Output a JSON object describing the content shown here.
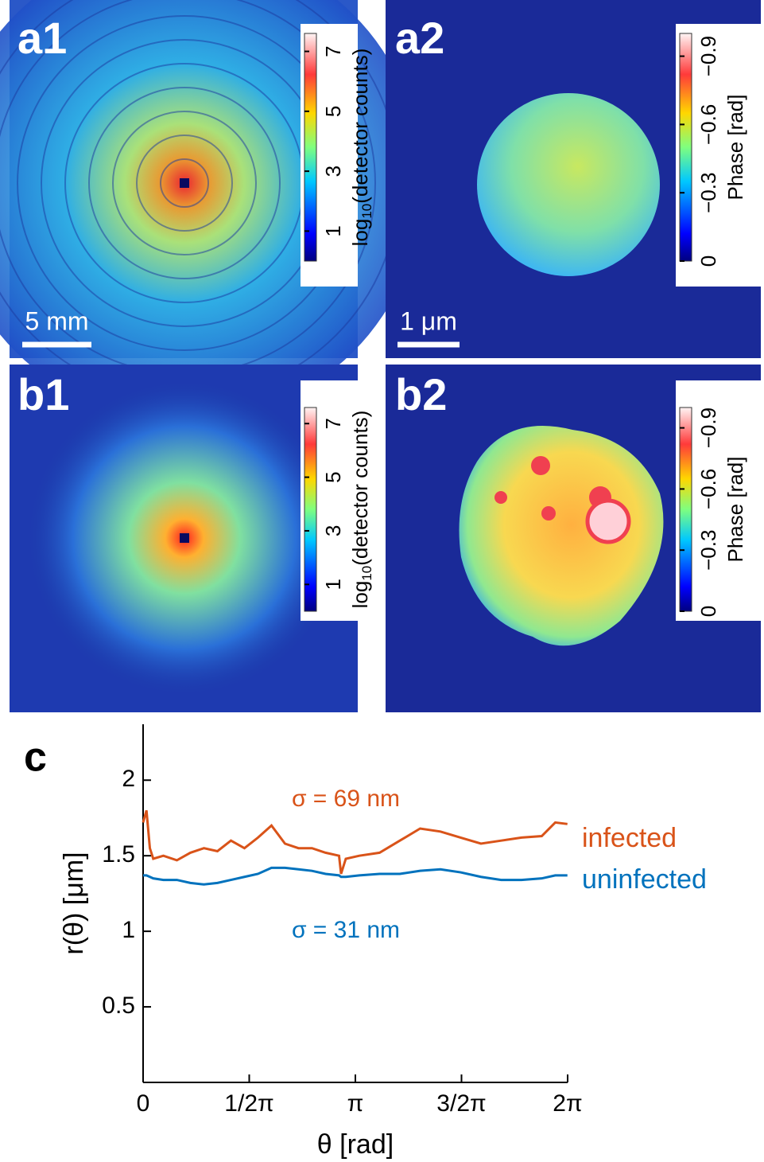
{
  "panels": [
    {
      "label": "a1",
      "colorbar": {
        "lim": [
          0,
          7.6
        ],
        "ticks": [
          1,
          3,
          5,
          7
        ],
        "label_parts": [
          "log",
          "10",
          "(detector counts)"
        ]
      },
      "scale_bar": "5 mm"
    },
    {
      "label": "a2",
      "colorbar": {
        "lim": [
          0,
          -1.0
        ],
        "ticks": [
          0,
          {
            "value": -0.3,
            "label": "−0.3"
          },
          {
            "value": -0.6,
            "label": "−0.6"
          },
          {
            "value": -0.9,
            "label": "−0.9"
          }
        ],
        "label_parts": [
          "Phase [rad]"
        ]
      },
      "scale_bar": "1 μm"
    },
    {
      "label": "b1",
      "colorbar": {
        "lim": [
          0,
          7.6
        ],
        "ticks": [
          1,
          3,
          5,
          7
        ],
        "label_parts": [
          "log",
          "10",
          "(detector counts)"
        ]
      }
    },
    {
      "label": "b2",
      "colorbar": {
        "lim": [
          0,
          -1.0
        ],
        "ticks": [
          0,
          {
            "value": -0.3,
            "label": "−0.3"
          },
          {
            "value": -0.6,
            "label": "−0.6"
          },
          {
            "value": -0.9,
            "label": "−0.9"
          }
        ],
        "label_parts": [
          "Phase [rad]"
        ]
      }
    }
  ],
  "chart_data": {
    "type": "line",
    "panel_label": "c",
    "x_label": "θ [rad]",
    "y_label": "r(θ) [μm]",
    "xlim": [
      0,
      6.2832
    ],
    "ylim": [
      0,
      2.37
    ],
    "xticks": [
      0,
      {
        "value": 1.5708,
        "label": "1/2π"
      },
      {
        "value": 3.1416,
        "label": "π"
      },
      {
        "value": 4.7124,
        "label": "3/2π"
      },
      {
        "value": 6.2832,
        "label": "2π"
      }
    ],
    "yticks": [
      0.5,
      1,
      1.5,
      2
    ],
    "x": [
      0,
      0.05,
      0.1,
      0.15,
      0.3,
      0.5,
      0.7,
      0.9,
      1.1,
      1.3,
      1.5,
      1.7,
      1.9,
      2.1,
      2.3,
      2.5,
      2.7,
      2.9,
      2.93,
      3.0,
      3.2,
      3.5,
      3.8,
      4.1,
      4.4,
      4.7,
      5.0,
      5.3,
      5.6,
      5.9,
      6.1,
      6.28
    ],
    "series": [
      {
        "name": "infected",
        "color": "#d95319",
        "values": [
          1.72,
          1.8,
          1.55,
          1.48,
          1.5,
          1.47,
          1.52,
          1.55,
          1.53,
          1.6,
          1.55,
          1.62,
          1.7,
          1.58,
          1.55,
          1.55,
          1.52,
          1.5,
          1.38,
          1.48,
          1.5,
          1.52,
          1.6,
          1.68,
          1.66,
          1.62,
          1.58,
          1.6,
          1.62,
          1.63,
          1.72,
          1.71
        ]
      },
      {
        "name": "uninfected",
        "color": "#0072bd",
        "values": [
          1.37,
          1.37,
          1.36,
          1.35,
          1.34,
          1.34,
          1.32,
          1.31,
          1.32,
          1.34,
          1.36,
          1.38,
          1.42,
          1.42,
          1.41,
          1.4,
          1.38,
          1.37,
          1.36,
          1.36,
          1.37,
          1.38,
          1.38,
          1.4,
          1.41,
          1.39,
          1.36,
          1.34,
          1.34,
          1.35,
          1.37,
          1.37
        ]
      }
    ],
    "annotations": [
      {
        "text": "σ = 69 nm",
        "color": "#d95319"
      },
      {
        "text": "σ = 31 nm",
        "color": "#0072bd"
      }
    ]
  }
}
